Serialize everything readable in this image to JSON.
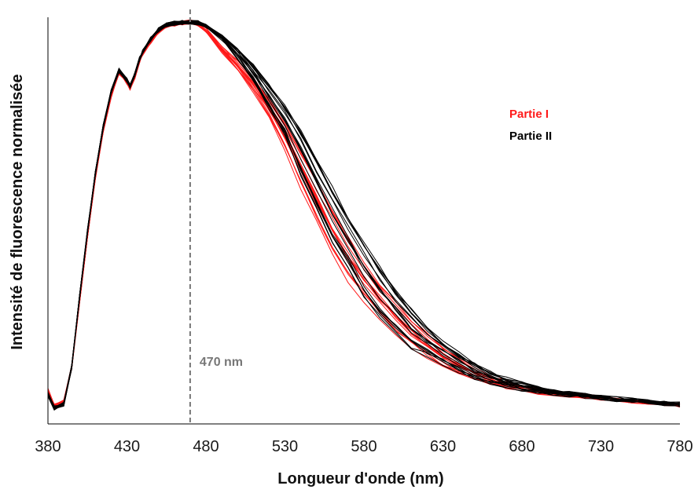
{
  "chart_data": {
    "type": "line",
    "xlabel": "Longueur d'onde (nm)",
    "ylabel": "Intensité de fluorescence normalisée",
    "xlim": [
      380,
      780
    ],
    "ylim": [
      0,
      1
    ],
    "x_ticks": [
      "380",
      "430",
      "480",
      "530",
      "580",
      "630",
      "680",
      "730",
      "780"
    ],
    "y_ticks_shown": false,
    "grid": false,
    "legend_position": "right",
    "colors": {
      "Partie I": "#ff1a1a",
      "Partie II": "#000000",
      "reference_line": "#777777",
      "axis": "#000000"
    },
    "reference_line": {
      "x": 470,
      "label": "470 nm",
      "style": "dashed"
    },
    "x": [
      380,
      384,
      390,
      395,
      400,
      405,
      410,
      415,
      420,
      425,
      430,
      432,
      435,
      438,
      440,
      445,
      450,
      455,
      460,
      465,
      470,
      475,
      480,
      490,
      500,
      510,
      520,
      530,
      540,
      550,
      560,
      570,
      580,
      590,
      600,
      610,
      620,
      630,
      640,
      650,
      660,
      670,
      680,
      690,
      700,
      710,
      720,
      730,
      740,
      750,
      760,
      770,
      780
    ],
    "series": [
      {
        "name": "Partie I",
        "values": [
          0.05,
          0.01,
          0.02,
          0.11,
          0.28,
          0.45,
          0.6,
          0.72,
          0.81,
          0.87,
          0.845,
          0.83,
          0.86,
          0.9,
          0.92,
          0.95,
          0.975,
          0.99,
          0.995,
          0.998,
          1.0,
          0.995,
          0.98,
          0.93,
          0.89,
          0.84,
          0.78,
          0.71,
          0.63,
          0.55,
          0.47,
          0.4,
          0.34,
          0.29,
          0.245,
          0.205,
          0.17,
          0.14,
          0.115,
          0.095,
          0.08,
          0.068,
          0.058,
          0.05,
          0.044,
          0.039,
          0.035,
          0.031,
          0.027,
          0.023,
          0.019,
          0.016,
          0.013
        ]
      },
      {
        "name": "Partie II",
        "values": [
          0.04,
          0.005,
          0.015,
          0.11,
          0.29,
          0.46,
          0.61,
          0.73,
          0.82,
          0.875,
          0.85,
          0.835,
          0.865,
          0.905,
          0.925,
          0.955,
          0.98,
          0.992,
          0.997,
          0.999,
          1.0,
          0.998,
          0.99,
          0.96,
          0.92,
          0.87,
          0.81,
          0.75,
          0.67,
          0.59,
          0.51,
          0.44,
          0.37,
          0.31,
          0.26,
          0.215,
          0.18,
          0.15,
          0.125,
          0.102,
          0.085,
          0.072,
          0.061,
          0.052,
          0.045,
          0.04,
          0.036,
          0.032,
          0.028,
          0.024,
          0.02,
          0.017,
          0.014
        ]
      }
    ],
    "annotations": [
      "470 nm"
    ]
  }
}
